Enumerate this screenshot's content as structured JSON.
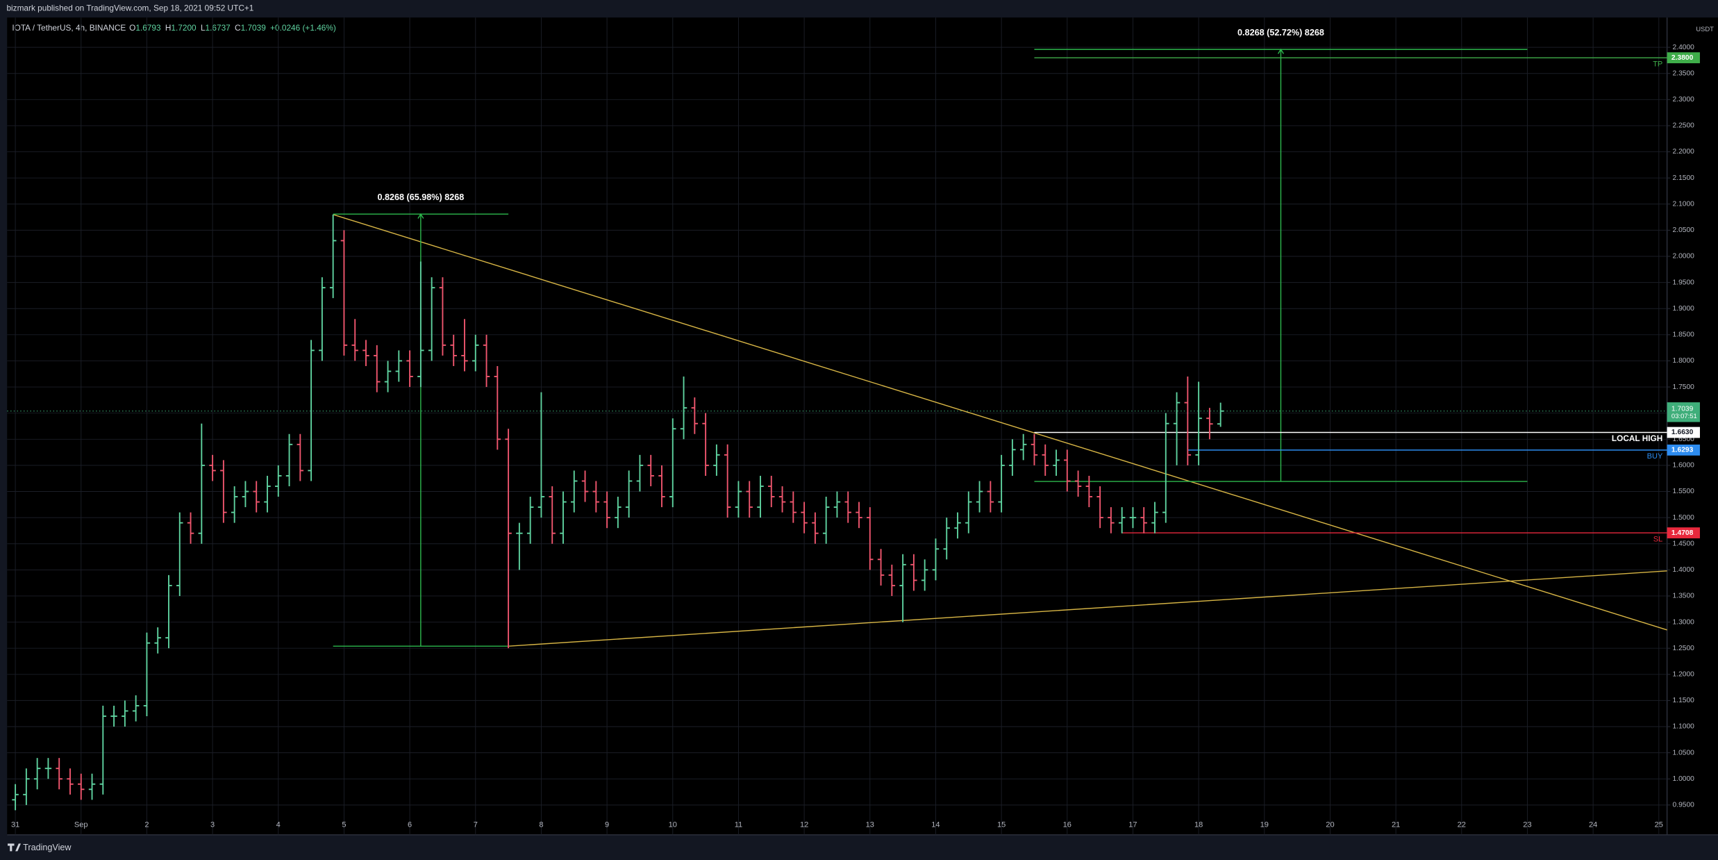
{
  "header": {
    "publisher": "bizmark published on TradingView.com, Sep 18, 2021 09:52 UTC+1",
    "symbol": "IOTA / TetherUS, 4h, BINANCE",
    "ohlc": [
      {
        "key": "O",
        "value": "1.6793"
      },
      {
        "key": "H",
        "value": "1.7200"
      },
      {
        "key": "L",
        "value": "1.6737"
      },
      {
        "key": "C",
        "value": "1.7039"
      }
    ],
    "change": "+0.0246 (+1.46%)",
    "currency": "USDT",
    "footer": "TradingView"
  },
  "chart_data": {
    "type": "ohlc",
    "up_color": "#5fd3a0",
    "down_color": "#f0566e",
    "grid": true,
    "x": [
      0,
      4,
      8,
      12,
      16,
      20,
      24,
      28,
      32,
      36,
      40,
      44,
      48,
      52,
      56,
      60,
      64,
      68,
      72,
      76,
      80,
      84,
      88,
      92,
      96,
      100,
      104,
      108,
      112,
      116,
      120,
      124,
      128,
      132,
      136,
      140,
      144,
      148,
      152,
      156,
      160,
      164,
      168,
      172,
      176,
      180,
      184,
      188,
      192,
      196,
      200,
      204,
      208,
      212,
      216,
      220,
      224,
      228,
      232,
      236,
      240,
      244,
      248,
      252,
      256,
      260,
      264,
      268,
      272,
      276,
      280,
      284,
      288,
      292,
      296,
      300,
      304,
      308,
      312,
      316,
      320,
      324,
      328,
      332,
      336,
      340,
      344,
      348,
      352,
      356,
      360,
      364,
      368,
      372,
      376,
      380,
      384,
      388,
      392,
      396,
      400,
      404,
      408,
      412,
      416,
      420,
      424,
      428,
      432,
      436,
      440
    ],
    "open": [
      0.96,
      0.97,
      1.0,
      1.02,
      1.02,
      1.0,
      0.99,
      0.98,
      0.99,
      1.12,
      1.12,
      1.13,
      1.14,
      1.26,
      1.27,
      1.37,
      1.49,
      1.47,
      1.6,
      1.59,
      1.51,
      1.54,
      1.55,
      1.53,
      1.56,
      1.58,
      1.64,
      1.59,
      1.82,
      1.94,
      2.03,
      1.83,
      1.82,
      1.81,
      1.76,
      1.78,
      1.8,
      1.77,
      1.82,
      1.94,
      1.83,
      1.81,
      1.8,
      1.83,
      1.77,
      1.65,
      1.47,
      1.47,
      1.52,
      1.54,
      1.47,
      1.53,
      1.57,
      1.55,
      1.53,
      1.5,
      1.52,
      1.57,
      1.6,
      1.58,
      1.54,
      1.67,
      1.71,
      1.68,
      1.6,
      1.62,
      1.52,
      1.55,
      1.52,
      1.56,
      1.54,
      1.53,
      1.51,
      1.49,
      1.47,
      1.52,
      1.53,
      1.51,
      1.5,
      1.42,
      1.39,
      1.37,
      1.41,
      1.38,
      1.4,
      1.44,
      1.48,
      1.49,
      1.53,
      1.55,
      1.53,
      1.6,
      1.63,
      1.64,
      1.62,
      1.6,
      1.61,
      1.57,
      1.56,
      1.54,
      1.5,
      1.49,
      1.5,
      1.5,
      1.49,
      1.51,
      1.68,
      1.72,
      1.62,
      1.69,
      1.6793
    ],
    "high": [
      0.99,
      1.02,
      1.04,
      1.04,
      1.04,
      1.02,
      1.01,
      1.01,
      1.14,
      1.14,
      1.15,
      1.16,
      1.28,
      1.29,
      1.39,
      1.51,
      1.51,
      1.68,
      1.62,
      1.61,
      1.56,
      1.57,
      1.57,
      1.58,
      1.6,
      1.66,
      1.66,
      1.84,
      1.96,
      2.08,
      2.05,
      1.88,
      1.84,
      1.83,
      1.8,
      1.82,
      1.82,
      1.99,
      1.96,
      1.96,
      1.85,
      1.88,
      1.85,
      1.85,
      1.79,
      1.67,
      1.49,
      1.54,
      1.74,
      1.56,
      1.55,
      1.59,
      1.59,
      1.57,
      1.55,
      1.54,
      1.59,
      1.62,
      1.62,
      1.6,
      1.69,
      1.77,
      1.73,
      1.7,
      1.64,
      1.64,
      1.57,
      1.57,
      1.58,
      1.58,
      1.56,
      1.55,
      1.53,
      1.51,
      1.54,
      1.55,
      1.55,
      1.53,
      1.52,
      1.44,
      1.41,
      1.43,
      1.43,
      1.42,
      1.46,
      1.5,
      1.51,
      1.55,
      1.57,
      1.57,
      1.62,
      1.65,
      1.66,
      1.66,
      1.64,
      1.63,
      1.63,
      1.59,
      1.58,
      1.56,
      1.52,
      1.52,
      1.52,
      1.52,
      1.53,
      1.7,
      1.74,
      1.77,
      1.76,
      1.71,
      1.72
    ],
    "low": [
      0.94,
      0.95,
      0.98,
      1.0,
      0.98,
      0.97,
      0.96,
      0.96,
      0.97,
      1.1,
      1.1,
      1.11,
      1.12,
      1.24,
      1.25,
      1.35,
      1.45,
      1.45,
      1.57,
      1.49,
      1.49,
      1.52,
      1.51,
      1.51,
      1.54,
      1.56,
      1.57,
      1.57,
      1.8,
      1.92,
      1.81,
      1.8,
      1.79,
      1.74,
      1.74,
      1.76,
      1.75,
      1.75,
      1.8,
      1.81,
      1.79,
      1.78,
      1.78,
      1.75,
      1.63,
      1.25,
      1.4,
      1.45,
      1.5,
      1.45,
      1.45,
      1.51,
      1.53,
      1.51,
      1.48,
      1.48,
      1.5,
      1.55,
      1.56,
      1.52,
      1.52,
      1.65,
      1.66,
      1.58,
      1.58,
      1.5,
      1.5,
      1.5,
      1.5,
      1.52,
      1.51,
      1.49,
      1.47,
      1.45,
      1.45,
      1.5,
      1.49,
      1.48,
      1.4,
      1.37,
      1.35,
      1.3,
      1.36,
      1.36,
      1.38,
      1.42,
      1.46,
      1.47,
      1.51,
      1.51,
      1.51,
      1.58,
      1.61,
      1.6,
      1.58,
      1.58,
      1.55,
      1.54,
      1.52,
      1.48,
      1.47,
      1.47,
      1.48,
      1.47,
      1.47,
      1.49,
      1.6,
      1.6,
      1.6,
      1.65,
      1.6737
    ],
    "close": [
      0.97,
      1.0,
      1.02,
      1.02,
      1.0,
      0.99,
      0.98,
      0.99,
      1.12,
      1.12,
      1.13,
      1.14,
      1.26,
      1.27,
      1.37,
      1.49,
      1.47,
      1.6,
      1.59,
      1.51,
      1.54,
      1.55,
      1.53,
      1.56,
      1.58,
      1.64,
      1.59,
      1.82,
      1.94,
      2.03,
      1.83,
      1.82,
      1.81,
      1.76,
      1.78,
      1.8,
      1.77,
      1.82,
      1.94,
      1.83,
      1.81,
      1.8,
      1.83,
      1.77,
      1.65,
      1.47,
      1.47,
      1.52,
      1.54,
      1.47,
      1.53,
      1.57,
      1.55,
      1.53,
      1.5,
      1.52,
      1.57,
      1.6,
      1.58,
      1.54,
      1.67,
      1.71,
      1.68,
      1.6,
      1.62,
      1.52,
      1.55,
      1.52,
      1.56,
      1.54,
      1.53,
      1.51,
      1.49,
      1.47,
      1.52,
      1.53,
      1.51,
      1.5,
      1.42,
      1.39,
      1.37,
      1.41,
      1.38,
      1.4,
      1.44,
      1.48,
      1.49,
      1.53,
      1.55,
      1.53,
      1.6,
      1.63,
      1.64,
      1.62,
      1.6,
      1.61,
      1.57,
      1.56,
      1.54,
      1.5,
      1.49,
      1.5,
      1.5,
      1.49,
      1.51,
      1.68,
      1.72,
      1.62,
      1.69,
      1.6793,
      1.7039
    ],
    "xlim": [
      -3,
      603
    ],
    "xticks": [
      {
        "value": 0,
        "label": "31"
      },
      {
        "value": 24,
        "label": "Sep"
      },
      {
        "value": 48,
        "label": "2"
      },
      {
        "value": 72,
        "label": "3"
      },
      {
        "value": 96,
        "label": "4"
      },
      {
        "value": 120,
        "label": "5"
      },
      {
        "value": 144,
        "label": "6"
      },
      {
        "value": 168,
        "label": "7"
      },
      {
        "value": 192,
        "label": "8"
      },
      {
        "value": 216,
        "label": "9"
      },
      {
        "value": 240,
        "label": "10"
      },
      {
        "value": 264,
        "label": "11"
      },
      {
        "value": 288,
        "label": "12"
      },
      {
        "value": 312,
        "label": "13"
      },
      {
        "value": 336,
        "label": "14"
      },
      {
        "value": 360,
        "label": "15"
      },
      {
        "value": 384,
        "label": "16"
      },
      {
        "value": 408,
        "label": "17"
      },
      {
        "value": 432,
        "label": "18"
      },
      {
        "value": 456,
        "label": "19"
      },
      {
        "value": 480,
        "label": "20"
      },
      {
        "value": 504,
        "label": "21"
      },
      {
        "value": 528,
        "label": "22"
      },
      {
        "value": 552,
        "label": "23"
      },
      {
        "value": 576,
        "label": "24"
      },
      {
        "value": 600,
        "label": "25"
      }
    ],
    "ylim": [
      0.893,
      2.457
    ],
    "yticks": [
      {
        "value": 0.95,
        "label": "0.9500"
      },
      {
        "value": 1,
        "label": "1.0000"
      },
      {
        "value": 1.05,
        "label": "1.0500"
      },
      {
        "value": 1.1,
        "label": "1.1000"
      },
      {
        "value": 1.15,
        "label": "1.1500"
      },
      {
        "value": 1.2,
        "label": "1.2000"
      },
      {
        "value": 1.25,
        "label": "1.2500"
      },
      {
        "value": 1.3,
        "label": "1.3000"
      },
      {
        "value": 1.35,
        "label": "1.3500"
      },
      {
        "value": 1.4,
        "label": "1.4000"
      },
      {
        "value": 1.45,
        "label": "1.4500"
      },
      {
        "value": 1.5,
        "label": "1.5000"
      },
      {
        "value": 1.55,
        "label": "1.5500"
      },
      {
        "value": 1.6,
        "label": "1.6000"
      },
      {
        "value": 1.65,
        "label": "1.6500"
      },
      {
        "value": 1.7,
        "label": "1.7000"
      },
      {
        "value": 1.75,
        "label": "1.7500"
      },
      {
        "value": 1.8,
        "label": "1.8000"
      },
      {
        "value": 1.85,
        "label": "1.8500"
      },
      {
        "value": 1.9,
        "label": "1.9000"
      },
      {
        "value": 1.95,
        "label": "1.9500"
      },
      {
        "value": 2,
        "label": "2.0000"
      },
      {
        "value": 2.05,
        "label": "2.0500"
      },
      {
        "value": 2.1,
        "label": "2.1000"
      },
      {
        "value": 2.15,
        "label": "2.1500"
      },
      {
        "value": 2.2,
        "label": "2.2000"
      },
      {
        "value": 2.25,
        "label": "2.2500"
      },
      {
        "value": 2.3,
        "label": "2.3000"
      },
      {
        "value": 2.35,
        "label": "2.3500"
      },
      {
        "value": 2.4,
        "label": "2.4000"
      }
    ],
    "trend_lines": [
      {
        "from": [
          116,
          2.08
        ],
        "to": [
          603,
          1.285
        ],
        "color": "#d7b545"
      },
      {
        "from": [
          180,
          1.254
        ],
        "to": [
          603,
          1.398
        ],
        "color": "#d7b545"
      }
    ],
    "measures": [
      {
        "label": "0.8268 (65.98%) 8268",
        "start": 116,
        "end": 180,
        "arrow": 148,
        "low": 1.254,
        "high": 2.0808,
        "color": "#2db84d"
      },
      {
        "label": "0.8268 (52.72%) 8268",
        "start": 372,
        "end": 552,
        "arrow": 462,
        "low": 1.5692,
        "high": 2.396,
        "color": "#2db84d"
      }
    ],
    "levels": [
      {
        "name": "TP",
        "value": 2.38,
        "value_label": "2.3800",
        "start": 372,
        "color": "#3fae4a"
      },
      {
        "name": "LOCAL HIGH",
        "value": 1.663,
        "value_label": "1.6630",
        "start": 372,
        "color": "#ffffff"
      },
      {
        "name": "BUY",
        "value": 1.6293,
        "value_label": "1.6293",
        "start": 428,
        "color": "#2d8cf0"
      },
      {
        "name": "SL",
        "value": 1.4708,
        "value_label": "1.4708",
        "start": 404,
        "color": "#e8283c"
      }
    ],
    "last_price": {
      "value": 1.7039,
      "label": "1.7039",
      "countdown": "03:07:51",
      "color": "#3fae7a"
    }
  }
}
